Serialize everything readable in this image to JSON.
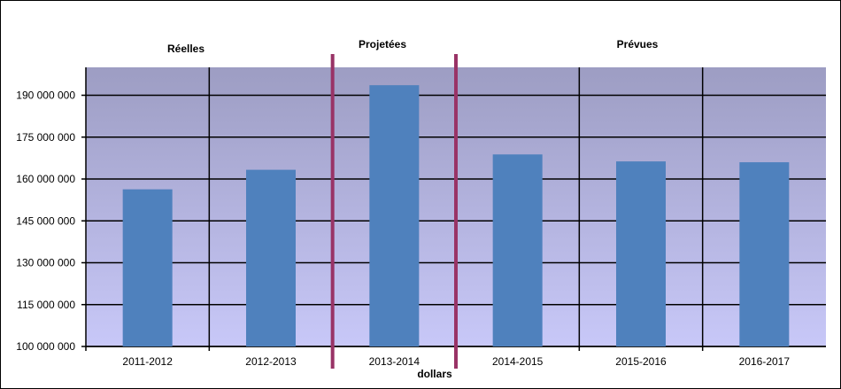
{
  "chart_data": {
    "type": "bar",
    "categories": [
      "2011-2012",
      "2012-2013",
      "2013-2014",
      "2014-2015",
      "2015-2016",
      "2016-2017"
    ],
    "values": [
      156300000,
      163300000,
      193600000,
      168800000,
      166300000,
      166000000
    ],
    "xlabel": "dollars",
    "ylabel": "",
    "ylim": [
      100000000,
      200000000
    ],
    "yticks": [
      100000000,
      115000000,
      130000000,
      145000000,
      160000000,
      175000000,
      190000000
    ],
    "ytick_labels": [
      "100 000 000",
      "115 000 000",
      "130 000 000",
      "145 000 000",
      "160 000 000",
      "175 000 000",
      "190 000 000"
    ],
    "grid": true,
    "section_labels": [
      {
        "label": "Réelles",
        "categories": [
          "2011-2012",
          "2012-2013"
        ]
      },
      {
        "label": "Projetées",
        "categories": [
          "2013-2014"
        ]
      },
      {
        "label": "Prévues",
        "categories": [
          "2014-2015",
          "2015-2016",
          "2016-2017"
        ]
      }
    ],
    "colors": {
      "bar": "#4f81bd",
      "divider": "#993366",
      "plot_top": "#9d9dc3",
      "plot_bottom": "#c8c8f8"
    }
  }
}
